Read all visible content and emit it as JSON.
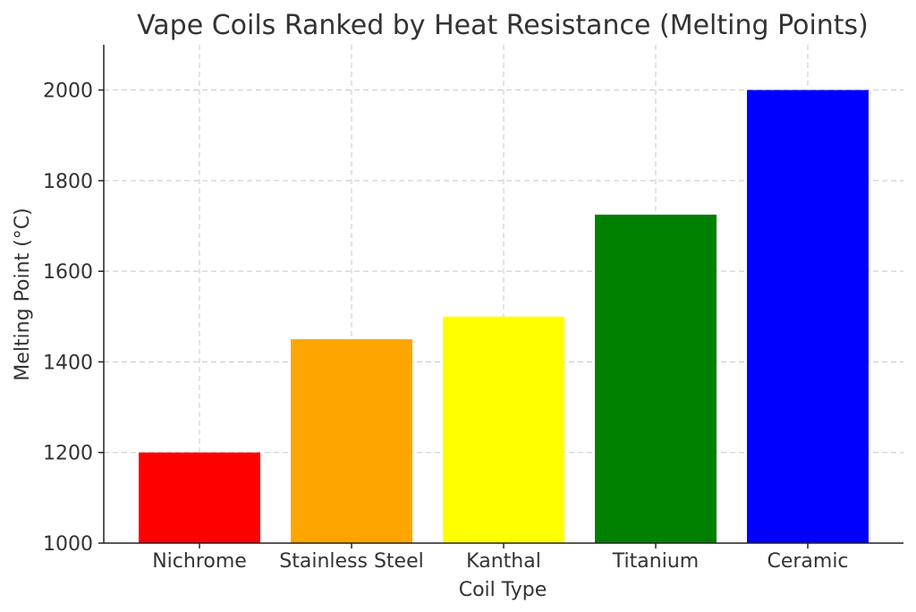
{
  "chart_data": {
    "type": "bar",
    "title": "Vape Coils Ranked by Heat Resistance (Melting Points)",
    "xlabel": "Coil Type",
    "ylabel": "Melting Point (°C)",
    "categories": [
      "Nichrome",
      "Stainless Steel",
      "Kanthal",
      "Titanium",
      "Ceramic"
    ],
    "values": [
      1200,
      1450,
      1500,
      1725,
      2000
    ],
    "colors": [
      "#ff0000",
      "#ffa500",
      "#ffff00",
      "#008000",
      "#0000ff"
    ],
    "ylim": [
      1000,
      2100
    ],
    "yticks": [
      1000,
      1200,
      1400,
      1600,
      1800,
      2000
    ],
    "grid": true
  }
}
